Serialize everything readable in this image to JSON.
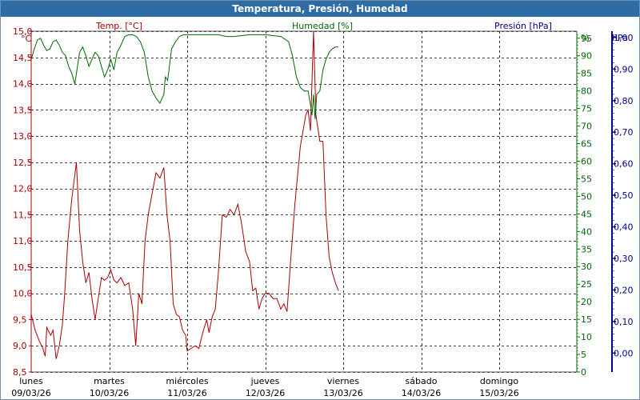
{
  "window": {
    "title": "Temperatura, Presión, Humedad"
  },
  "chart_data": {
    "type": "line",
    "title": "Temperatura, Presión, Humedad",
    "grid": true,
    "colors": {
      "temp": "#aa0000",
      "humidity": "#006600",
      "pressure": "#000088"
    },
    "axes": {
      "temp": {
        "label": "Temp. [°C]",
        "unit": "°C",
        "range": [
          8.5,
          15.0
        ],
        "ticks": [
          "8,5",
          "9,0",
          "9,5",
          "10,0",
          "10,5",
          "11,0",
          "11,5",
          "12,0",
          "12,5",
          "13,0",
          "13,5",
          "14,0",
          "14,5",
          "15,0"
        ]
      },
      "humidity": {
        "label": "Humedad [%]",
        "unit": "%",
        "range": [
          0,
          97
        ],
        "ticks": [
          "0",
          "5",
          "10",
          "15",
          "20",
          "25",
          "30",
          "35",
          "40",
          "45",
          "50",
          "55",
          "60",
          "65",
          "70",
          "75",
          "80",
          "85",
          "90",
          "95"
        ]
      },
      "pressure": {
        "label": "Presión [hPa]",
        "unit": "hPa",
        "range": [
          -0.06,
          1.02
        ],
        "ticks": [
          "0,00",
          "0,10",
          "0,20",
          "0,30",
          "0,40",
          "0,50",
          "0,60",
          "0,70",
          "0,80",
          "0,90",
          "1,00"
        ]
      }
    },
    "x_range": [
      0,
      7
    ],
    "days": [
      {
        "name": "lunes",
        "date": "09/03/26"
      },
      {
        "name": "martes",
        "date": "10/03/26"
      },
      {
        "name": "miércoles",
        "date": "11/03/26"
      },
      {
        "name": "jueves",
        "date": "12/03/26"
      },
      {
        "name": "viernes",
        "date": "13/03/26"
      },
      {
        "name": "sábado",
        "date": "14/03/26"
      },
      {
        "name": "domingo",
        "date": "15/03/26"
      }
    ],
    "series": [
      {
        "name": "Temp. [°C]",
        "axis": "temp",
        "points": [
          [
            0.0,
            9.6
          ],
          [
            0.05,
            9.3
          ],
          [
            0.1,
            9.1
          ],
          [
            0.15,
            8.95
          ],
          [
            0.18,
            8.8
          ],
          [
            0.2,
            9.35
          ],
          [
            0.25,
            9.2
          ],
          [
            0.28,
            9.3
          ],
          [
            0.32,
            8.75
          ],
          [
            0.36,
            9.0
          ],
          [
            0.4,
            9.4
          ],
          [
            0.43,
            10.0
          ],
          [
            0.47,
            11.0
          ],
          [
            0.52,
            11.8
          ],
          [
            0.58,
            12.5
          ],
          [
            0.62,
            11.2
          ],
          [
            0.66,
            10.6
          ],
          [
            0.7,
            10.2
          ],
          [
            0.74,
            10.4
          ],
          [
            0.78,
            9.9
          ],
          [
            0.82,
            9.5
          ],
          [
            0.86,
            9.9
          ],
          [
            0.9,
            10.3
          ],
          [
            0.94,
            10.25
          ],
          [
            0.98,
            10.3
          ],
          [
            1.02,
            10.45
          ],
          [
            1.06,
            10.25
          ],
          [
            1.1,
            10.2
          ],
          [
            1.15,
            10.3
          ],
          [
            1.2,
            10.15
          ],
          [
            1.25,
            10.2
          ],
          [
            1.3,
            9.7
          ],
          [
            1.34,
            9.0
          ],
          [
            1.38,
            10.0
          ],
          [
            1.42,
            9.8
          ],
          [
            1.46,
            11.0
          ],
          [
            1.5,
            11.5
          ],
          [
            1.55,
            11.9
          ],
          [
            1.6,
            12.3
          ],
          [
            1.65,
            12.2
          ],
          [
            1.7,
            12.4
          ],
          [
            1.74,
            11.5
          ],
          [
            1.78,
            11.0
          ],
          [
            1.82,
            9.8
          ],
          [
            1.86,
            9.6
          ],
          [
            1.9,
            9.55
          ],
          [
            1.94,
            9.3
          ],
          [
            1.98,
            9.2
          ],
          [
            2.0,
            8.9
          ],
          [
            2.05,
            8.95
          ],
          [
            2.1,
            9.0
          ],
          [
            2.15,
            8.95
          ],
          [
            2.2,
            9.25
          ],
          [
            2.25,
            9.5
          ],
          [
            2.28,
            9.25
          ],
          [
            2.32,
            9.55
          ],
          [
            2.36,
            9.7
          ],
          [
            2.4,
            10.4
          ],
          [
            2.45,
            11.5
          ],
          [
            2.5,
            11.45
          ],
          [
            2.55,
            11.6
          ],
          [
            2.6,
            11.5
          ],
          [
            2.65,
            11.7
          ],
          [
            2.7,
            11.3
          ],
          [
            2.75,
            10.8
          ],
          [
            2.8,
            10.6
          ],
          [
            2.84,
            10.05
          ],
          [
            2.88,
            10.1
          ],
          [
            2.92,
            9.7
          ],
          [
            2.96,
            9.9
          ],
          [
            3.0,
            10.0
          ],
          [
            3.05,
            10.0
          ],
          [
            3.1,
            9.9
          ],
          [
            3.15,
            9.9
          ],
          [
            3.2,
            9.7
          ],
          [
            3.24,
            9.8
          ],
          [
            3.28,
            9.65
          ],
          [
            3.32,
            10.5
          ],
          [
            3.38,
            11.7
          ],
          [
            3.45,
            12.8
          ],
          [
            3.52,
            13.4
          ],
          [
            3.55,
            13.5
          ],
          [
            3.58,
            13.1
          ],
          [
            3.62,
            15.0
          ],
          [
            3.65,
            13.4
          ],
          [
            3.7,
            12.9
          ],
          [
            3.74,
            12.9
          ],
          [
            3.78,
            11.5
          ],
          [
            3.82,
            10.7
          ],
          [
            3.86,
            10.4
          ],
          [
            3.9,
            10.2
          ],
          [
            3.94,
            10.05
          ]
        ]
      },
      {
        "name": "Humedad [%]",
        "axis": "humidity",
        "points": [
          [
            0.0,
            89.0
          ],
          [
            0.04,
            92.0
          ],
          [
            0.08,
            94.5
          ],
          [
            0.12,
            95.0
          ],
          [
            0.16,
            93.0
          ],
          [
            0.2,
            91.5
          ],
          [
            0.24,
            92.0
          ],
          [
            0.28,
            94.0
          ],
          [
            0.32,
            94.5
          ],
          [
            0.36,
            93.0
          ],
          [
            0.4,
            91.0
          ],
          [
            0.44,
            90.0
          ],
          [
            0.48,
            87.0
          ],
          [
            0.52,
            85.0
          ],
          [
            0.56,
            82.0
          ],
          [
            0.6,
            88.0
          ],
          [
            0.62,
            91.0
          ],
          [
            0.66,
            92.5
          ],
          [
            0.7,
            90.0
          ],
          [
            0.74,
            87.0
          ],
          [
            0.78,
            89.0
          ],
          [
            0.82,
            91.0
          ],
          [
            0.86,
            90.0
          ],
          [
            0.9,
            87.0
          ],
          [
            0.94,
            84.0
          ],
          [
            0.98,
            86.0
          ],
          [
            1.02,
            89.0
          ],
          [
            1.06,
            86.0
          ],
          [
            1.1,
            91.0
          ],
          [
            1.15,
            93.0
          ],
          [
            1.2,
            95.5
          ],
          [
            1.25,
            96.0
          ],
          [
            1.3,
            96.0
          ],
          [
            1.35,
            95.5
          ],
          [
            1.4,
            94.0
          ],
          [
            1.45,
            91.0
          ],
          [
            1.5,
            84.0
          ],
          [
            1.55,
            80.0
          ],
          [
            1.6,
            78.0
          ],
          [
            1.65,
            76.5
          ],
          [
            1.7,
            79.0
          ],
          [
            1.72,
            84.0
          ],
          [
            1.75,
            83.0
          ],
          [
            1.8,
            92.0
          ],
          [
            1.85,
            94.0
          ],
          [
            1.9,
            95.5
          ],
          [
            1.95,
            96.0
          ],
          [
            2.0,
            96.0
          ],
          [
            2.2,
            96.0
          ],
          [
            2.4,
            96.0
          ],
          [
            2.5,
            95.5
          ],
          [
            2.6,
            95.5
          ],
          [
            2.8,
            96.0
          ],
          [
            3.0,
            96.0
          ],
          [
            3.2,
            95.5
          ],
          [
            3.3,
            94.0
          ],
          [
            3.35,
            90.0
          ],
          [
            3.4,
            84.0
          ],
          [
            3.45,
            81.0
          ],
          [
            3.5,
            80.0
          ],
          [
            3.55,
            80.0
          ],
          [
            3.58,
            76.0
          ],
          [
            3.6,
            73.0
          ],
          [
            3.62,
            79.0
          ],
          [
            3.64,
            72.0
          ],
          [
            3.66,
            79.0
          ],
          [
            3.7,
            80.0
          ],
          [
            3.74,
            86.0
          ],
          [
            3.78,
            89.0
          ],
          [
            3.82,
            91.0
          ],
          [
            3.86,
            92.0
          ],
          [
            3.9,
            92.5
          ],
          [
            3.94,
            92.5
          ]
        ]
      }
    ]
  }
}
